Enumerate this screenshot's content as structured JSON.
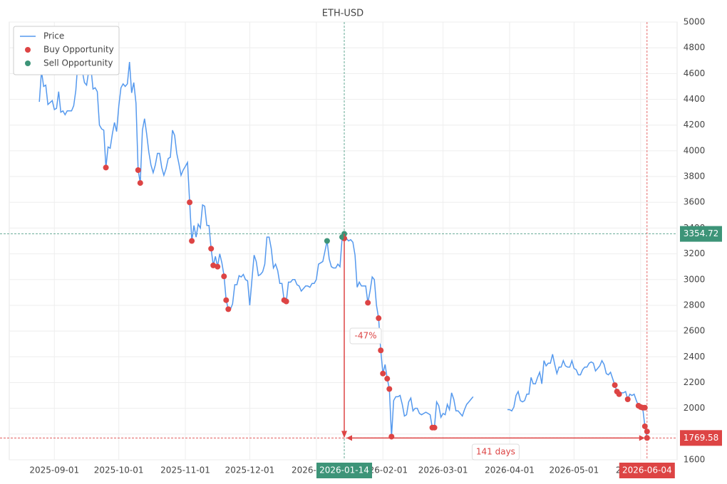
{
  "chart_data": {
    "type": "line",
    "title": "ETH-USD",
    "xlim": [
      "2025-08-11",
      "2026-06-18"
    ],
    "ylim": [
      1600,
      5000
    ],
    "xticks": [
      "2025-09-01",
      "2025-10-01",
      "2025-11-01",
      "2025-12-01",
      "2026-01-01",
      "2026-02-01",
      "2026-03-01",
      "2026-04-01",
      "2026-05-01",
      "2026-06-01"
    ],
    "yticks": [
      1600,
      1800,
      2000,
      2200,
      2400,
      2600,
      2800,
      3000,
      3200,
      3400,
      3600,
      3800,
      4000,
      4200,
      4400,
      4600,
      4800,
      5000
    ],
    "grid": true,
    "legend": "upper left",
    "series": [
      {
        "name": "Price",
        "type": "line",
        "color": "#5599ee",
        "x": [
          "2025-08-25",
          "2025-08-26",
          "2025-08-27",
          "2025-08-28",
          "2025-08-29",
          "2025-08-31",
          "2025-09-01",
          "2025-09-02",
          "2025-09-03",
          "2025-09-04",
          "2025-09-05",
          "2025-09-06",
          "2025-09-07",
          "2025-09-09",
          "2025-09-10",
          "2025-09-11",
          "2025-09-12",
          "2025-09-13",
          "2025-09-14",
          "2025-09-15",
          "2025-09-16",
          "2025-09-17",
          "2025-09-18",
          "2025-09-19",
          "2025-09-20",
          "2025-09-21",
          "2025-09-22",
          "2025-09-23",
          "2025-09-24",
          "2025-09-25",
          "2025-09-26",
          "2025-09-27",
          "2025-09-28",
          "2025-09-29",
          "2025-09-30",
          "2025-10-01",
          "2025-10-02",
          "2025-10-03",
          "2025-10-04",
          "2025-10-05",
          "2025-10-06",
          "2025-10-07",
          "2025-10-08",
          "2025-10-09",
          "2025-10-10",
          "2025-10-11",
          "2025-10-12",
          "2025-10-13",
          "2025-10-14",
          "2025-10-15",
          "2025-10-16",
          "2025-10-17",
          "2025-10-18",
          "2025-10-19",
          "2025-10-20",
          "2025-10-21",
          "2025-10-22",
          "2025-10-23",
          "2025-10-24",
          "2025-10-25",
          "2025-10-26",
          "2025-10-27",
          "2025-10-28",
          "2025-10-29",
          "2025-10-30",
          "2025-10-31",
          "2025-11-01",
          "2025-11-02",
          "2025-11-03",
          "2025-11-04",
          "2025-11-05",
          "2025-11-06",
          "2025-11-07",
          "2025-11-08",
          "2025-11-09",
          "2025-11-10",
          "2025-11-11",
          "2025-11-12",
          "2025-11-13",
          "2025-11-14",
          "2025-11-15",
          "2025-11-16",
          "2025-11-17",
          "2025-11-18",
          "2025-11-19",
          "2025-11-20",
          "2025-11-21",
          "2025-11-22",
          "2025-11-23",
          "2025-11-24",
          "2025-11-25",
          "2025-11-26",
          "2025-11-27",
          "2025-11-28",
          "2025-11-29",
          "2025-11-30",
          "2025-12-01",
          "2025-12-02",
          "2025-12-03",
          "2025-12-04",
          "2025-12-05",
          "2025-12-06",
          "2025-12-07",
          "2025-12-08",
          "2025-12-09",
          "2025-12-10",
          "2025-12-11",
          "2025-12-12",
          "2025-12-13",
          "2025-12-14",
          "2025-12-15",
          "2025-12-16",
          "2025-12-17",
          "2025-12-18",
          "2025-12-19",
          "2025-12-20",
          "2025-12-21",
          "2025-12-22",
          "2025-12-23",
          "2025-12-24",
          "2025-12-25",
          "2025-12-26",
          "2025-12-27",
          "2025-12-28",
          "2025-12-29",
          "2025-12-30",
          "2025-12-31",
          "2026-01-01",
          "2026-01-02",
          "2026-01-03",
          "2026-01-04",
          "2026-01-05",
          "2026-01-06",
          "2026-01-07",
          "2026-01-08",
          "2026-01-09",
          "2026-01-10",
          "2026-01-11",
          "2026-01-12",
          "2026-01-13",
          "2026-01-14",
          "2026-01-15",
          "2026-01-16",
          "2026-01-17",
          "2026-01-18",
          "2026-01-19",
          "2026-01-20",
          "2026-01-21",
          "2026-01-22",
          "2026-01-23",
          "2026-01-24",
          "2026-01-25",
          "2026-01-26",
          "2026-01-27",
          "2026-01-28",
          "2026-01-29",
          "2026-01-30",
          "2026-01-31",
          "2026-02-01",
          "2026-02-02",
          "2026-02-03",
          "2026-02-04",
          "2026-02-05",
          "2026-02-06",
          "2026-02-07",
          "2026-02-08",
          "2026-02-09",
          "2026-02-10",
          "2026-02-11",
          "2026-02-12",
          "2026-02-13",
          "2026-02-14",
          "2026-02-15",
          "2026-02-16",
          "2026-02-17",
          "2026-02-18",
          "2026-02-19",
          "2026-02-20",
          "2026-02-21",
          "2026-02-22",
          "2026-02-23",
          "2026-02-24",
          "2026-02-25",
          "2026-02-26",
          "2026-02-27",
          "2026-02-28",
          "2026-03-01",
          "2026-03-02",
          "2026-03-03",
          "2026-03-04",
          "2026-03-05",
          "2026-03-06",
          "2026-03-07",
          "2026-03-08",
          "2026-03-09",
          "2026-03-10",
          "2026-03-11",
          "2026-03-12",
          "2026-03-13",
          "2026-03-14",
          "2026-03-15",
          "2026-03-23",
          "2026-03-31",
          "2026-04-01",
          "2026-04-02",
          "2026-04-03",
          "2026-04-04",
          "2026-04-05",
          "2026-04-06",
          "2026-04-07",
          "2026-04-08",
          "2026-04-09",
          "2026-04-10",
          "2026-04-11",
          "2026-04-12",
          "2026-04-13",
          "2026-04-14",
          "2026-04-15",
          "2026-04-16",
          "2026-04-17",
          "2026-04-18",
          "2026-04-19",
          "2026-04-20",
          "2026-04-21",
          "2026-04-22",
          "2026-04-23",
          "2026-04-24",
          "2026-04-25",
          "2026-04-26",
          "2026-04-27",
          "2026-04-28",
          "2026-04-29",
          "2026-04-30",
          "2026-05-01",
          "2026-05-02",
          "2026-05-03",
          "2026-05-04",
          "2026-05-05",
          "2026-05-06",
          "2026-05-07",
          "2026-05-08",
          "2026-05-09",
          "2026-05-10",
          "2026-05-11",
          "2026-05-12",
          "2026-05-13",
          "2026-05-14",
          "2026-05-15",
          "2026-05-16",
          "2026-05-17",
          "2026-05-18",
          "2026-05-19",
          "2026-05-20",
          "2026-05-21",
          "2026-05-22",
          "2026-05-23",
          "2026-05-24",
          "2026-05-25",
          "2026-05-26",
          "2026-05-27",
          "2026-05-28",
          "2026-05-29",
          "2026-05-30",
          "2026-05-31",
          "2026-06-01",
          "2026-06-02",
          "2026-06-03",
          "2026-06-04"
        ],
        "values": [
          4380,
          4620,
          4500,
          4510,
          4360,
          4390,
          4320,
          4330,
          4460,
          4300,
          4310,
          4280,
          4310,
          4310,
          4350,
          4470,
          4700,
          4800,
          4620,
          4530,
          4510,
          4620,
          4650,
          4480,
          4490,
          4460,
          4200,
          4170,
          4160,
          3870,
          4030,
          4020,
          4130,
          4220,
          4150,
          4350,
          4490,
          4520,
          4500,
          4520,
          4690,
          4450,
          4530,
          4370,
          3850,
          3750,
          4160,
          4250,
          4130,
          3990,
          3890,
          3830,
          3890,
          3980,
          3980,
          3870,
          3810,
          3860,
          3940,
          3950,
          4160,
          4120,
          3980,
          3900,
          3810,
          3850,
          3880,
          3910,
          3600,
          3300,
          3420,
          3330,
          3430,
          3400,
          3580,
          3570,
          3420,
          3420,
          3240,
          3110,
          3180,
          3100,
          3200,
          3130,
          3030,
          2840,
          2770,
          2770,
          2810,
          2960,
          2960,
          3030,
          3020,
          3040,
          3000,
          2990,
          2800,
          3000,
          3190,
          3140,
          3030,
          3040,
          3060,
          3120,
          3330,
          3330,
          3240,
          3090,
          3120,
          3070,
          2970,
          2970,
          2840,
          2830,
          2980,
          2980,
          3000,
          3000,
          2960,
          2950,
          2910,
          2930,
          2950,
          2950,
          2940,
          2970,
          2970,
          3000,
          3120,
          3130,
          3140,
          3220,
          3300,
          3160,
          3100,
          3090,
          3090,
          3120,
          3100,
          3320,
          3355,
          3320,
          3300,
          3310,
          3290,
          3190,
          2940,
          2980,
          2950,
          2950,
          2950,
          2820,
          2910,
          3020,
          3000,
          2800,
          2700,
          2450,
          2270,
          2340,
          2230,
          2150,
          1780,
          2060,
          2090,
          2090,
          2100,
          2030,
          1940,
          1950,
          2050,
          2080,
          1980,
          2000,
          2000,
          1960,
          1950,
          1960,
          1970,
          1960,
          1950,
          1850,
          1850,
          2050,
          2020,
          1930,
          1960,
          1950,
          2030,
          1990,
          2120,
          2070,
          1980,
          1980,
          1960,
          1940,
          1990,
          2030,
          2050,
          2070,
          2090,
          null,
          1990,
          1990,
          1980,
          2010,
          2100,
          2130,
          2060,
          2050,
          2060,
          2110,
          2110,
          2240,
          2190,
          2190,
          2240,
          2280,
          2190,
          2370,
          2330,
          2350,
          2350,
          2420,
          2340,
          2270,
          2320,
          2320,
          2370,
          2330,
          2320,
          2320,
          2370,
          2310,
          2300,
          2260,
          2260,
          2300,
          2320,
          2320,
          2350,
          2360,
          2350,
          2290,
          2310,
          2330,
          2370,
          2340,
          2270,
          2260,
          2280,
          2230,
          2180,
          2130,
          2120,
          2120,
          2120,
          2130,
          2070,
          2110,
          2100,
          2110,
          2060,
          2020,
          2010,
          2000,
          1860,
          1770
        ]
      },
      {
        "name": "Buy Opportunity",
        "type": "scatter",
        "color": "#dd4444",
        "x": [
          "2025-09-25",
          "2025-10-10",
          "2025-10-11",
          "2025-11-03",
          "2025-11-04",
          "2025-11-13",
          "2025-11-14",
          "2025-11-16",
          "2025-11-19",
          "2025-11-20",
          "2025-11-21",
          "2025-12-17",
          "2025-12-18",
          "2026-01-14",
          "2026-01-25",
          "2026-01-30",
          "2026-01-31",
          "2026-02-01",
          "2026-02-03",
          "2026-02-04",
          "2026-02-05",
          "2026-02-24",
          "2026-02-25",
          "2026-05-20",
          "2026-05-21",
          "2026-05-22",
          "2026-05-26",
          "2026-05-31",
          "2026-06-01",
          "2026-06-02",
          "2026-06-03",
          "2026-06-03",
          "2026-06-04",
          "2026-06-04"
        ],
        "values": [
          3870,
          3850,
          3750,
          3600,
          3300,
          3240,
          3110,
          3100,
          3025,
          2840,
          2770,
          2840,
          2830,
          3320,
          2820,
          2700,
          2450,
          2270,
          2230,
          2150,
          1780,
          1850,
          1850,
          2180,
          2130,
          2110,
          2070,
          2020,
          2010,
          2005,
          2005,
          1860,
          1820,
          1770
        ]
      },
      {
        "name": "Sell Opportunity",
        "type": "scatter",
        "color": "#3d9478",
        "x": [
          "2026-01-06",
          "2026-01-13",
          "2026-01-14"
        ],
        "values": [
          3300,
          3330,
          3355
        ]
      }
    ],
    "hlines": [
      {
        "value": 3354.72,
        "color": "#3d9478"
      },
      {
        "value": 1769.58,
        "color": "#dd4444"
      }
    ],
    "vlines": [
      {
        "x": "2026-01-14",
        "color": "#3d9478"
      },
      {
        "x": "2026-06-04",
        "color": "#dd4444"
      }
    ],
    "annotations": [
      {
        "text": "-47%",
        "color": "#dd4444"
      },
      {
        "text": "141 days",
        "color": "#dd4444"
      }
    ]
  }
}
